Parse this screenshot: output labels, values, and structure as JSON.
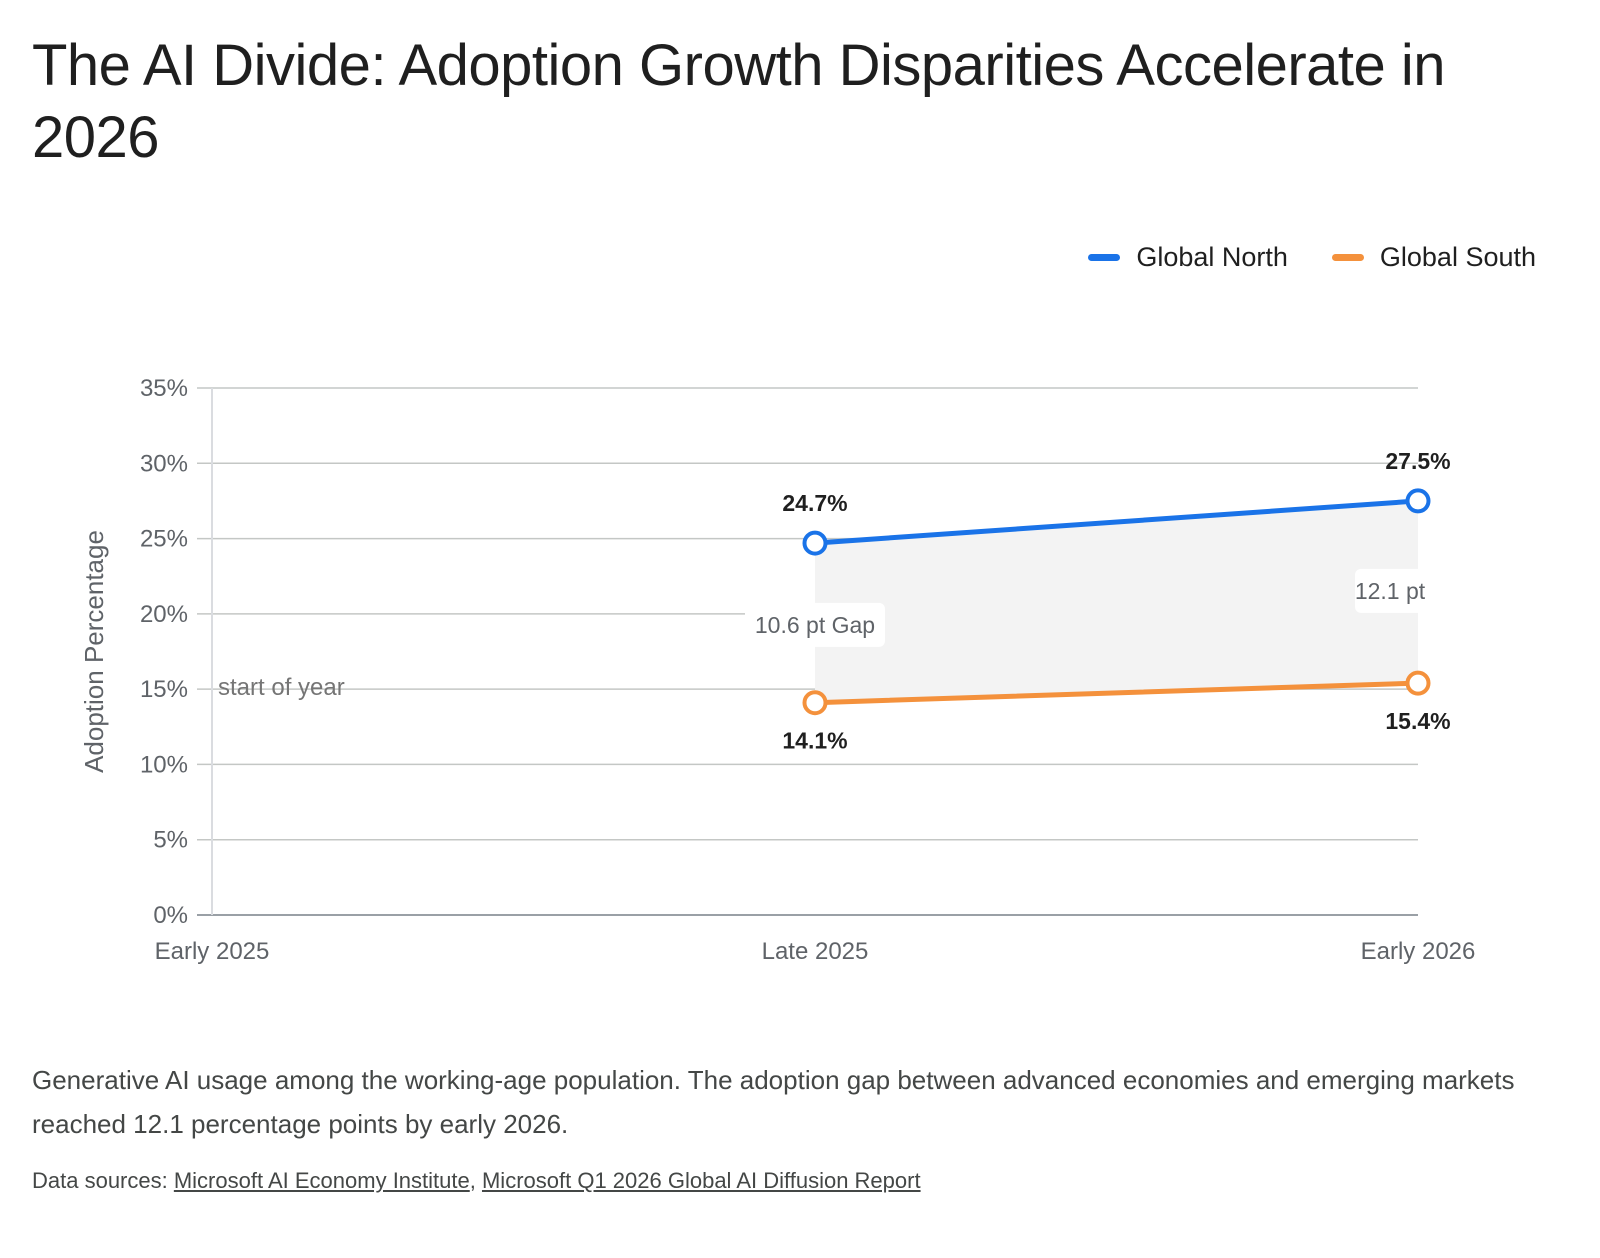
{
  "title": "The AI Divide: Adoption Growth Disparities Accelerate in 2026",
  "legend": [
    {
      "name": "Global North",
      "color": "#1a73e8"
    },
    {
      "name": "Global South",
      "color": "#f4913c"
    }
  ],
  "caption": "Generative AI usage among the working-age population. The adoption gap between advanced economies and emerging markets reached 12.1 percentage points by early 2026.",
  "sources": {
    "prefix": "Data sources: ",
    "separator": ", ",
    "links": [
      "Microsoft AI Economy Institute",
      "Microsoft Q1 2026 Global AI Diffusion Report"
    ]
  },
  "chart_data": {
    "type": "line",
    "title": "The AI Divide: Adoption Growth Disparities Accelerate in 2026",
    "ylabel": "Adoption Percentage",
    "xlabel": "",
    "categories": [
      "Early 2025",
      "Late 2025",
      "Early 2026"
    ],
    "ylim": [
      0,
      35
    ],
    "yticks": [
      0,
      5,
      10,
      15,
      20,
      25,
      30,
      35
    ],
    "ytick_labels": [
      "0%",
      "5%",
      "10%",
      "15%",
      "20%",
      "25%",
      "30%",
      "35%"
    ],
    "grid": true,
    "legend_position": "top-right",
    "series": [
      {
        "name": "Global North",
        "color": "#1a73e8",
        "values": [
          null,
          24.7,
          27.5
        ],
        "labels": [
          "",
          "24.7%",
          "27.5%"
        ]
      },
      {
        "name": "Global South",
        "color": "#f4913c",
        "values": [
          null,
          14.1,
          15.4
        ],
        "labels": [
          "",
          "14.1%",
          "15.4%"
        ]
      }
    ],
    "gap_annotations": [
      {
        "category": "Late 2025",
        "text": "10.6 pt Gap"
      },
      {
        "category": "Early 2026",
        "text": "12.1 pt"
      }
    ],
    "reference_line": {
      "value": 15,
      "label": "start of year"
    }
  }
}
